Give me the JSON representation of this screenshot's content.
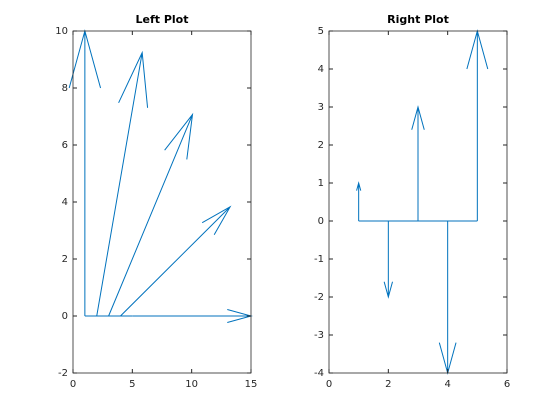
{
  "chart_data": [
    {
      "type": "feather",
      "title": "Left Plot",
      "x": [
        1,
        2,
        3,
        4,
        5
      ],
      "u": [
        0,
        3.83,
        7.07,
        9.24,
        10
      ],
      "v": [
        10,
        9.24,
        7.07,
        3.83,
        0
      ],
      "color": "#0072bd",
      "xlim": [
        0,
        15
      ],
      "xticks": [
        0,
        5,
        10,
        15
      ],
      "ylim": [
        -2,
        10
      ],
      "yticks": [
        -2,
        0,
        2,
        4,
        6,
        8,
        10
      ]
    },
    {
      "type": "feather",
      "title": "Right Plot",
      "x": [
        1,
        2,
        3,
        4,
        5
      ],
      "u": [
        0,
        0,
        0,
        0,
        0
      ],
      "v": [
        1,
        -2,
        3,
        -4,
        5
      ],
      "color": "#0072bd",
      "xlim": [
        0,
        6
      ],
      "xticks": [
        0,
        2,
        4,
        6
      ],
      "ylim": [
        -4,
        5
      ],
      "yticks": [
        -4,
        -3,
        -2,
        -1,
        0,
        1,
        2,
        3,
        4,
        5
      ]
    }
  ]
}
